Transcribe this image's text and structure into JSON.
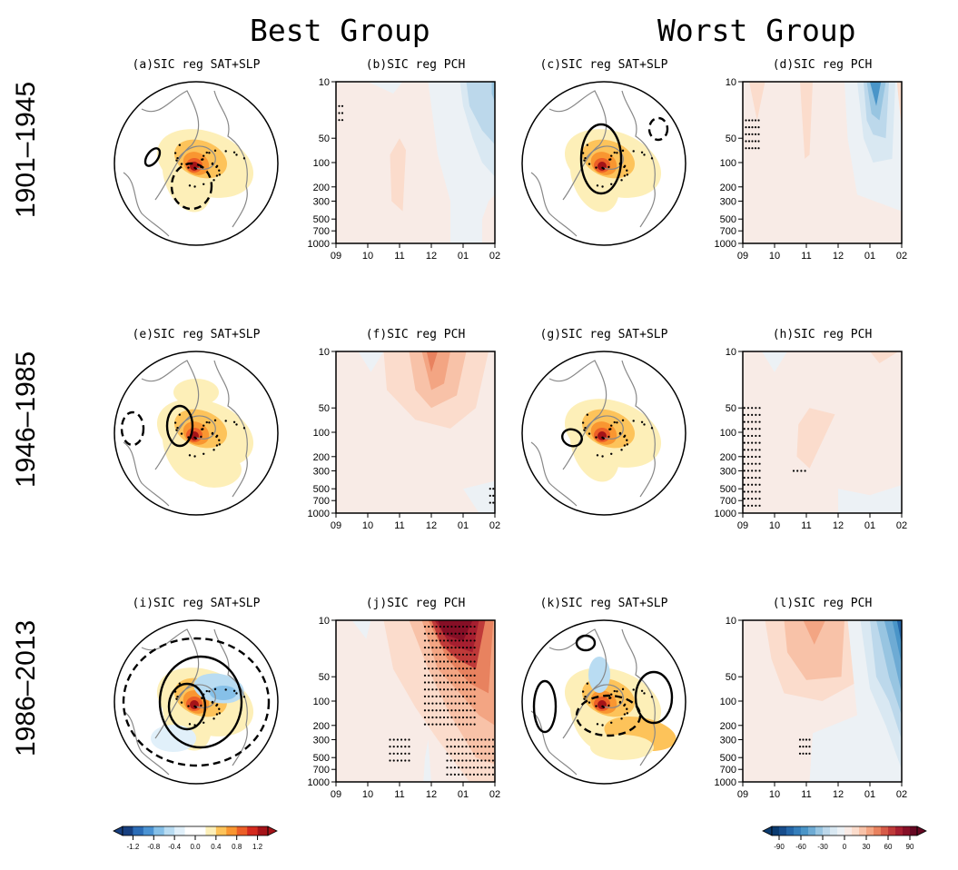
{
  "group_titles": [
    "Best Group",
    "Worst Group"
  ],
  "row_labels": [
    "1901–1945",
    "1946–1985",
    "1986–2013"
  ],
  "chart_data": [
    {
      "id": "a",
      "type": "heatmap",
      "subtype": "polar-map",
      "title": "(a)SIC reg SAT+SLP",
      "group": "Best Group",
      "period": "1901–1945",
      "features": {
        "warm_anomaly_center": "Barents-Kara",
        "max_sat": 1.2,
        "slp_contours": [
          {
            "style": "solid",
            "region": "North Atlantic (small)"
          },
          {
            "style": "dashed",
            "region": "Eurasian Arctic"
          }
        ],
        "stippling": true
      }
    },
    {
      "id": "b",
      "type": "heatmap",
      "subtype": "pressure-time",
      "title": "(b)SIC reg PCH",
      "group": "Best Group",
      "period": "1901–1945",
      "x": [
        "09",
        "10",
        "11",
        "12",
        "01",
        "02"
      ],
      "y_ticks": [
        "10",
        "50",
        "100",
        "200",
        "300",
        "500",
        "700",
        "1000"
      ],
      "features": {
        "min_value": -30,
        "max_value": 10,
        "negative_core": {
          "month": "01",
          "level_hPa": 10
        },
        "stippling": "small near 09 ~20-30 hPa"
      }
    },
    {
      "id": "c",
      "type": "heatmap",
      "subtype": "polar-map",
      "title": "(c)SIC reg SAT+SLP",
      "group": "Worst Group",
      "period": "1901–1945",
      "features": {
        "warm_anomaly_center": "Barents-Kara",
        "max_sat": 1.2,
        "slp_contours": [
          {
            "style": "solid",
            "region": "Eurasian Arctic"
          },
          {
            "style": "dashed",
            "region": "Pacific (small)"
          }
        ],
        "stippling": true
      }
    },
    {
      "id": "d",
      "type": "heatmap",
      "subtype": "pressure-time",
      "title": "(d)SIC reg PCH",
      "group": "Worst Group",
      "period": "1901–1945",
      "x": [
        "09",
        "10",
        "11",
        "12",
        "01",
        "02"
      ],
      "y_ticks": [
        "10",
        "50",
        "100",
        "200",
        "300",
        "500",
        "700",
        "1000"
      ],
      "features": {
        "min_value": -50,
        "max_value": 10,
        "negative_core": {
          "month": "01",
          "level_hPa": 10
        },
        "stippling": "near 09 ~30-70 hPa"
      }
    },
    {
      "id": "e",
      "type": "heatmap",
      "subtype": "polar-map",
      "title": "(e)SIC reg SAT+SLP",
      "group": "Best Group",
      "period": "1946–1985",
      "features": {
        "warm_anomaly_center": "Barents-Kara",
        "max_sat": 1.2,
        "slp_contours": [
          {
            "style": "solid",
            "region": "Eurasian Arctic"
          },
          {
            "style": "dashed",
            "region": "North Atlantic edge"
          }
        ],
        "stippling": true
      }
    },
    {
      "id": "f",
      "type": "heatmap",
      "subtype": "pressure-time",
      "title": "(f)SIC reg PCH",
      "group": "Best Group",
      "period": "1946–1985",
      "x": [
        "09",
        "10",
        "11",
        "12",
        "01",
        "02"
      ],
      "y_ticks": [
        "10",
        "50",
        "100",
        "200",
        "300",
        "500",
        "700",
        "1000"
      ],
      "features": {
        "min_value": -10,
        "max_value": 40,
        "positive_core": {
          "month": "12",
          "level_hPa": 10
        },
        "stippling": "small near 02 ~500-1000 hPa"
      }
    },
    {
      "id": "g",
      "type": "heatmap",
      "subtype": "polar-map",
      "title": "(g)SIC reg SAT+SLP",
      "group": "Worst Group",
      "period": "1946–1985",
      "features": {
        "warm_anomaly_center": "Barents-Kara",
        "max_sat": 1.2,
        "slp_contours": [
          {
            "style": "solid",
            "region": "North Atlantic (small)"
          }
        ],
        "stippling": true
      }
    },
    {
      "id": "h",
      "type": "heatmap",
      "subtype": "pressure-time",
      "title": "(h)SIC reg PCH",
      "group": "Worst Group",
      "period": "1946–1985",
      "x": [
        "09",
        "10",
        "11",
        "12",
        "01",
        "02"
      ],
      "y_ticks": [
        "10",
        "50",
        "100",
        "200",
        "300",
        "500",
        "700",
        "1000"
      ],
      "features": {
        "min_value": -10,
        "max_value": 10,
        "stippling": "near 09 from 50-1000 hPa; small near 11 at 300 hPa"
      }
    },
    {
      "id": "i",
      "type": "heatmap",
      "subtype": "polar-map",
      "title": "(i)SIC reg SAT+SLP",
      "group": "Best Group",
      "period": "1986–2013",
      "features": {
        "warm_anomaly_center": "Barents-Kara",
        "cold_anomaly": "Siberia",
        "max_sat": 1.2,
        "slp_contours": [
          {
            "style": "solid",
            "region": "Arctic-Eurasia (large)"
          },
          {
            "style": "dashed",
            "region": "surrounding ring"
          }
        ],
        "stippling": true
      }
    },
    {
      "id": "j",
      "type": "heatmap",
      "subtype": "pressure-time",
      "title": "(j)SIC reg PCH",
      "group": "Best Group",
      "period": "1986–2013",
      "x": [
        "09",
        "10",
        "11",
        "12",
        "01",
        "02"
      ],
      "y_ticks": [
        "10",
        "50",
        "100",
        "200",
        "300",
        "500",
        "700",
        "1000"
      ],
      "features": {
        "min_value": -10,
        "max_value": 90,
        "positive_core": {
          "month": "12-01",
          "level_hPa": 10
        },
        "stippling": "12-01 from 10-200 hPa, extending to 02 at 1000 hPa; small near 11 at 300-700 hPa"
      }
    },
    {
      "id": "k",
      "type": "heatmap",
      "subtype": "polar-map",
      "title": "(k)SIC reg SAT+SLP",
      "group": "Worst Group",
      "period": "1986–2013",
      "features": {
        "warm_anomaly_center": "Barents-Kara",
        "max_sat": 1.2,
        "slp_contours": [
          {
            "style": "solid",
            "region": "N Atlantic & N Pacific"
          },
          {
            "style": "dashed",
            "region": "Eurasia"
          }
        ],
        "stippling": true
      }
    },
    {
      "id": "l",
      "type": "heatmap",
      "subtype": "pressure-time",
      "title": "(l)SIC reg PCH",
      "group": "Worst Group",
      "period": "1986–2013",
      "x": [
        "09",
        "10",
        "11",
        "12",
        "01",
        "02"
      ],
      "y_ticks": [
        "10",
        "50",
        "100",
        "200",
        "300",
        "500",
        "700",
        "1000"
      ],
      "features": {
        "min_value": -90,
        "max_value": 30,
        "negative_core": {
          "month": "02",
          "level_hPa": 10
        },
        "positive_core": {
          "month": "11",
          "level_hPa": 10
        },
        "stippling": "small near 11 at 300-500 hPa"
      }
    }
  ],
  "colorbars": [
    {
      "name": "SAT colorbar",
      "ticks": [
        "-1.2",
        "-0.8",
        "-0.4",
        "0.0",
        "0.4",
        "0.8",
        "1.2"
      ],
      "tick_values": [
        -1.2,
        -0.8,
        -0.4,
        0.0,
        0.4,
        0.8,
        1.2
      ],
      "colors": [
        "#173f80",
        "#2b6cb6",
        "#4b93d3",
        "#86c0e8",
        "#b9dcf2",
        "#e1f0fa",
        "#ffffff",
        "#ffffff",
        "#fdefb8",
        "#fdc35a",
        "#f99631",
        "#ec5f27",
        "#d42a1e",
        "#a51318"
      ],
      "extend": "both"
    },
    {
      "name": "PCH colorbar",
      "ticks": [
        "-90",
        "-60",
        "-30",
        "0",
        "30",
        "60",
        "90"
      ],
      "tick_values": [
        -90,
        -60,
        -30,
        0,
        30,
        60,
        90
      ],
      "colors": [
        "#0b3b70",
        "#174d8c",
        "#2466a8",
        "#357ebb",
        "#4a95c8",
        "#6eabd4",
        "#98c5e1",
        "#bcd8eb",
        "#d9e8f2",
        "#ecf1f5",
        "#f8ebe6",
        "#fbdccc",
        "#f8c2a8",
        "#f3a583",
        "#e8825f",
        "#d65b48",
        "#bf3a39",
        "#a61f30",
        "#860f26",
        "#660822"
      ],
      "extend": "both"
    }
  ]
}
